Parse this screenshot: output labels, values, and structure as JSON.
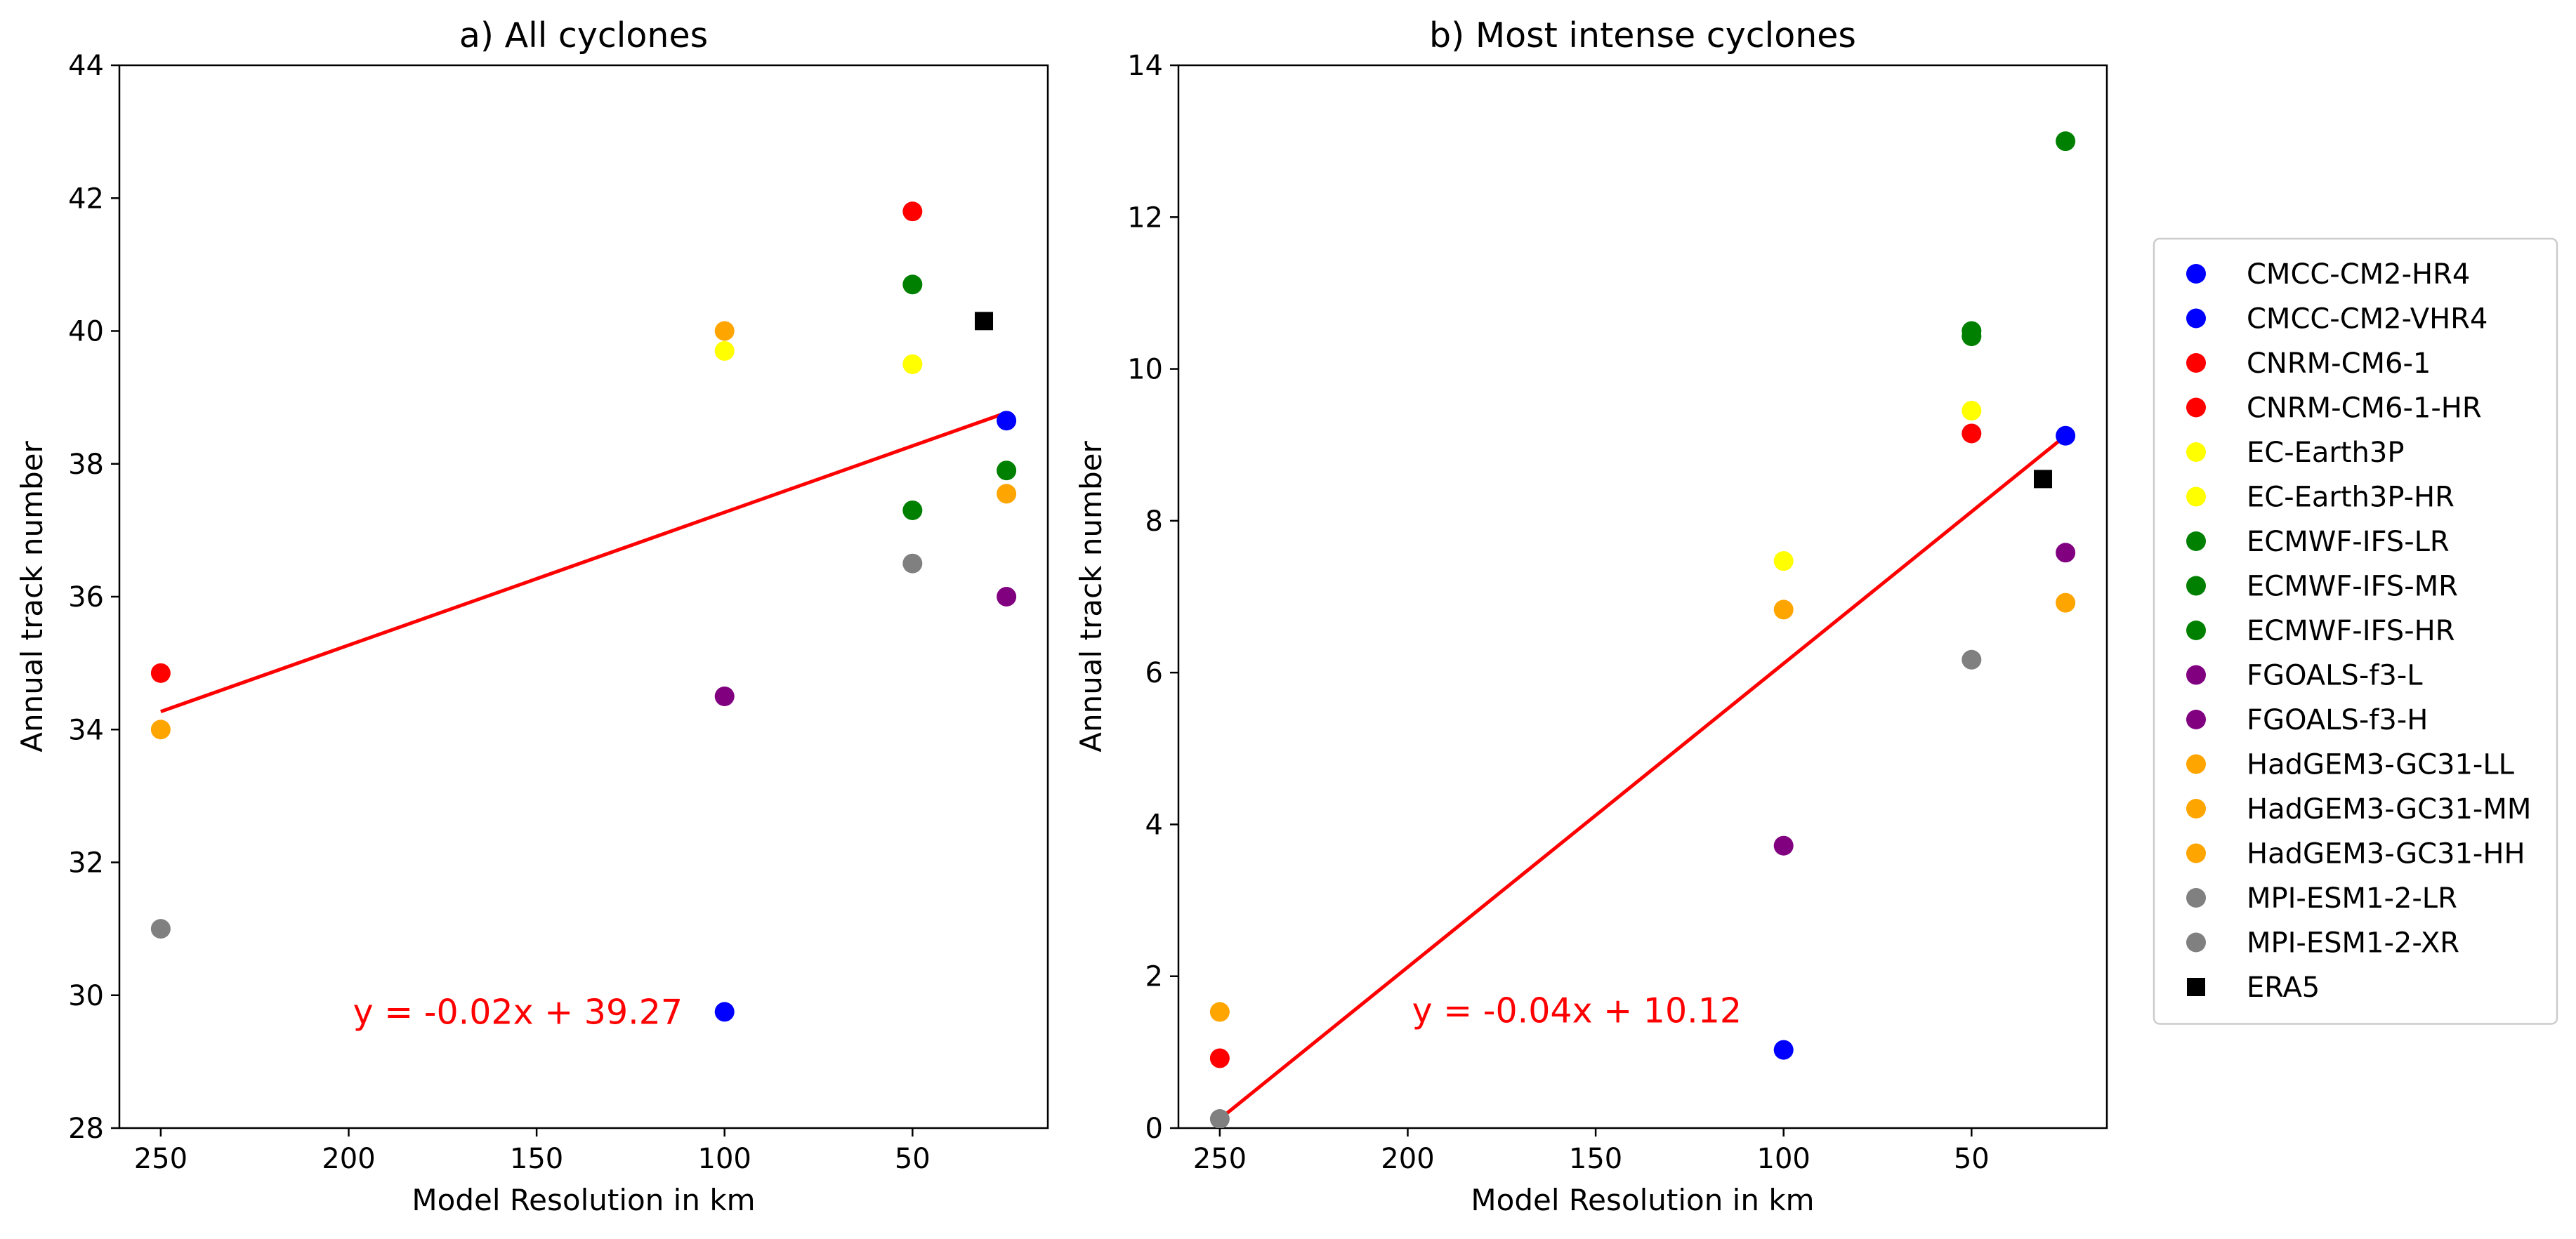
{
  "chart_data": [
    {
      "type": "scatter",
      "title": "a) All cyclones",
      "xlabel": "Model Resolution in km",
      "ylabel": "Annual track number",
      "xlim": [
        261,
        14
      ],
      "ylim": [
        28,
        44
      ],
      "x_inverted": true,
      "xticks": [
        250,
        200,
        150,
        100,
        50
      ],
      "yticks": [
        28,
        30,
        32,
        34,
        36,
        38,
        40,
        42,
        44
      ],
      "series": [
        {
          "name": "CMCC-CM2-HR4",
          "color": "#0000ff",
          "marker": "circle",
          "points": [
            [
              100,
              29.75
            ]
          ]
        },
        {
          "name": "CMCC-CM2-VHR4",
          "color": "#0000ff",
          "marker": "circle",
          "points": [
            [
              25,
              38.65
            ]
          ]
        },
        {
          "name": "CNRM-CM6-1",
          "color": "#ff0000",
          "marker": "circle",
          "points": [
            [
              250,
              34.85
            ]
          ]
        },
        {
          "name": "CNRM-CM6-1-HR",
          "color": "#ff0000",
          "marker": "circle",
          "points": [
            [
              50,
              41.8
            ]
          ]
        },
        {
          "name": "EC-Earth3P",
          "color": "#ffff00",
          "marker": "circle",
          "points": [
            [
              100,
              39.7
            ]
          ]
        },
        {
          "name": "EC-Earth3P-HR",
          "color": "#ffff00",
          "marker": "circle",
          "points": [
            [
              50,
              39.5
            ]
          ]
        },
        {
          "name": "ECMWF-IFS-LR",
          "color": "#008000",
          "marker": "circle",
          "points": [
            [
              50,
              37.3
            ]
          ]
        },
        {
          "name": "ECMWF-IFS-MR",
          "color": "#008000",
          "marker": "circle",
          "points": [
            [
              50,
              40.7
            ]
          ]
        },
        {
          "name": "ECMWF-IFS-HR",
          "color": "#008000",
          "marker": "circle",
          "points": [
            [
              25,
              37.9
            ]
          ]
        },
        {
          "name": "FGOALS-f3-L",
          "color": "#800080",
          "marker": "circle",
          "points": [
            [
              100,
              34.5
            ]
          ]
        },
        {
          "name": "FGOALS-f3-H",
          "color": "#800080",
          "marker": "circle",
          "points": [
            [
              25,
              36.0
            ]
          ]
        },
        {
          "name": "HadGEM3-GC31-LL",
          "color": "#ffa500",
          "marker": "circle",
          "points": [
            [
              250,
              34.0
            ]
          ]
        },
        {
          "name": "HadGEM3-GC31-MM",
          "color": "#ffa500",
          "marker": "circle",
          "points": [
            [
              100,
              40.0
            ]
          ]
        },
        {
          "name": "HadGEM3-GC31-HH",
          "color": "#ffa500",
          "marker": "circle",
          "points": [
            [
              25,
              37.55
            ]
          ]
        },
        {
          "name": "MPI-ESM1-2-LR",
          "color": "#808080",
          "marker": "circle",
          "points": [
            [
              250,
              31.0
            ]
          ]
        },
        {
          "name": "MPI-ESM1-2-XR",
          "color": "#808080",
          "marker": "circle",
          "points": [
            [
              50,
              36.5
            ]
          ]
        },
        {
          "name": "ERA5",
          "color": "#000000",
          "marker": "square",
          "points": [
            [
              31,
              40.15
            ]
          ]
        }
      ],
      "fit": {
        "label": "y = -0.02x + 39.27",
        "color": "#ff0000",
        "label_x": 155,
        "label_y": 29.75,
        "x_range": [
          250,
          25
        ]
      }
    },
    {
      "type": "scatter",
      "title": "b) Most intense cyclones",
      "xlabel": "Model Resolution in km",
      "ylabel": "Annual track number",
      "xlim": [
        261,
        14
      ],
      "ylim": [
        0,
        14
      ],
      "x_inverted": true,
      "xticks": [
        250,
        200,
        150,
        100,
        50
      ],
      "yticks": [
        0,
        2,
        4,
        6,
        8,
        10,
        12,
        14
      ],
      "series": [
        {
          "name": "CMCC-CM2-HR4",
          "color": "#0000ff",
          "marker": "circle",
          "points": [
            [
              100,
              1.03
            ]
          ]
        },
        {
          "name": "CMCC-CM2-VHR4",
          "color": "#0000ff",
          "marker": "circle",
          "points": [
            [
              25,
              9.12
            ]
          ]
        },
        {
          "name": "CNRM-CM6-1",
          "color": "#ff0000",
          "marker": "circle",
          "points": [
            [
              250,
              0.92
            ]
          ]
        },
        {
          "name": "CNRM-CM6-1-HR",
          "color": "#ff0000",
          "marker": "circle",
          "points": [
            [
              50,
              9.15
            ]
          ]
        },
        {
          "name": "EC-Earth3P",
          "color": "#ffff00",
          "marker": "circle",
          "points": [
            [
              100,
              7.47
            ]
          ]
        },
        {
          "name": "EC-Earth3P-HR",
          "color": "#ffff00",
          "marker": "circle",
          "points": [
            [
              50,
              9.45
            ]
          ]
        },
        {
          "name": "ECMWF-IFS-LR",
          "color": "#008000",
          "marker": "circle",
          "points": [
            [
              50,
              10.5
            ]
          ]
        },
        {
          "name": "ECMWF-IFS-MR",
          "color": "#008000",
          "marker": "circle",
          "points": [
            [
              50,
              10.43
            ]
          ]
        },
        {
          "name": "ECMWF-IFS-HR",
          "color": "#008000",
          "marker": "circle",
          "points": [
            [
              25,
              13.0
            ]
          ]
        },
        {
          "name": "FGOALS-f3-L",
          "color": "#800080",
          "marker": "circle",
          "points": [
            [
              100,
              3.72
            ]
          ]
        },
        {
          "name": "FGOALS-f3-H",
          "color": "#800080",
          "marker": "circle",
          "points": [
            [
              25,
              7.58
            ]
          ]
        },
        {
          "name": "HadGEM3-GC31-LL",
          "color": "#ffa500",
          "marker": "circle",
          "points": [
            [
              250,
              1.53
            ]
          ]
        },
        {
          "name": "HadGEM3-GC31-MM",
          "color": "#ffa500",
          "marker": "circle",
          "points": [
            [
              100,
              6.83
            ]
          ]
        },
        {
          "name": "HadGEM3-GC31-HH",
          "color": "#ffa500",
          "marker": "circle",
          "points": [
            [
              25,
              6.92
            ]
          ]
        },
        {
          "name": "MPI-ESM1-2-LR",
          "color": "#808080",
          "marker": "circle",
          "points": [
            [
              250,
              0.12
            ]
          ]
        },
        {
          "name": "MPI-ESM1-2-XR",
          "color": "#808080",
          "marker": "circle",
          "points": [
            [
              50,
              6.17
            ]
          ]
        },
        {
          "name": "ERA5",
          "color": "#000000",
          "marker": "square",
          "points": [
            [
              31,
              8.55
            ]
          ]
        }
      ],
      "fit": {
        "label": "y = -0.04x + 10.12",
        "color": "#ff0000",
        "label_x": 155,
        "label_y": 1.55,
        "x_range": [
          250,
          25
        ]
      }
    }
  ],
  "legend": {
    "placement": "right",
    "entries": [
      {
        "name": "CMCC-CM2-HR4",
        "color": "#0000ff",
        "marker": "circle"
      },
      {
        "name": "CMCC-CM2-VHR4",
        "color": "#0000ff",
        "marker": "circle"
      },
      {
        "name": "CNRM-CM6-1",
        "color": "#ff0000",
        "marker": "circle"
      },
      {
        "name": "CNRM-CM6-1-HR",
        "color": "#ff0000",
        "marker": "circle"
      },
      {
        "name": "EC-Earth3P",
        "color": "#ffff00",
        "marker": "circle"
      },
      {
        "name": "EC-Earth3P-HR",
        "color": "#ffff00",
        "marker": "circle"
      },
      {
        "name": "ECMWF-IFS-LR",
        "color": "#008000",
        "marker": "circle"
      },
      {
        "name": "ECMWF-IFS-MR",
        "color": "#008000",
        "marker": "circle"
      },
      {
        "name": "ECMWF-IFS-HR",
        "color": "#008000",
        "marker": "circle"
      },
      {
        "name": "FGOALS-f3-L",
        "color": "#800080",
        "marker": "circle"
      },
      {
        "name": "FGOALS-f3-H",
        "color": "#800080",
        "marker": "circle"
      },
      {
        "name": "HadGEM3-GC31-LL",
        "color": "#ffa500",
        "marker": "circle"
      },
      {
        "name": "HadGEM3-GC31-MM",
        "color": "#ffa500",
        "marker": "circle"
      },
      {
        "name": "HadGEM3-GC31-HH",
        "color": "#ffa500",
        "marker": "circle"
      },
      {
        "name": "MPI-ESM1-2-LR",
        "color": "#808080",
        "marker": "circle"
      },
      {
        "name": "MPI-ESM1-2-XR",
        "color": "#808080",
        "marker": "circle"
      },
      {
        "name": "ERA5",
        "color": "#000000",
        "marker": "square"
      }
    ]
  }
}
